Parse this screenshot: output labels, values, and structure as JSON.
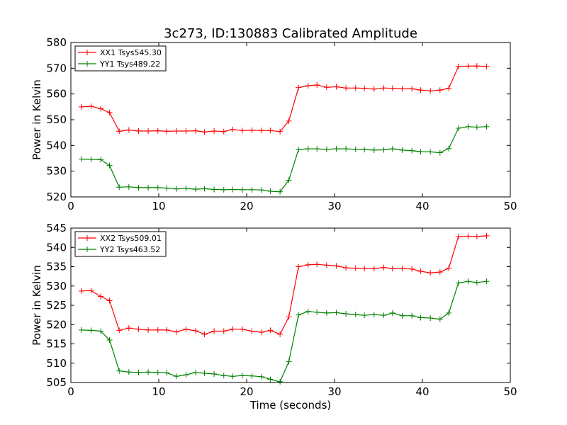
{
  "figure": {
    "title": "3c273, ID:130883 Calibrated Amplitude"
  },
  "chart_data": [
    {
      "type": "line",
      "title": "3c273, ID:130883 Calibrated Amplitude",
      "xlabel": "",
      "ylabel": "Power in Kelvin",
      "xlim": [
        0,
        50
      ],
      "ylim": [
        520,
        580
      ],
      "xticks": [
        0,
        10,
        20,
        30,
        40,
        50
      ],
      "yticks": [
        520,
        530,
        540,
        550,
        560,
        570,
        580
      ],
      "grid": false,
      "legend_position": "top-left",
      "x": [
        1.2,
        2.3,
        3.4,
        4.4,
        5.5,
        6.6,
        7.7,
        8.8,
        9.9,
        10.9,
        12.0,
        13.1,
        14.2,
        15.2,
        16.3,
        17.4,
        18.4,
        19.5,
        20.6,
        21.7,
        22.7,
        23.8,
        24.8,
        25.9,
        27.0,
        28.0,
        29.1,
        30.2,
        31.3,
        32.4,
        33.4,
        34.5,
        35.6,
        36.6,
        37.7,
        38.8,
        39.8,
        40.9,
        42.0,
        43.0,
        44.1,
        45.2,
        46.2,
        47.3
      ],
      "series": [
        {
          "name": "XX1 Tsys545.30",
          "color": "#ff0000",
          "values": [
            555.0,
            555.2,
            554.3,
            552.8,
            545.5,
            546.0,
            545.6,
            545.6,
            545.7,
            545.5,
            545.6,
            545.6,
            545.7,
            545.2,
            545.6,
            545.4,
            546.2,
            545.8,
            545.9,
            545.8,
            545.8,
            545.4,
            549.5,
            562.5,
            563.2,
            563.5,
            562.6,
            562.8,
            562.3,
            562.3,
            562.2,
            561.9,
            562.3,
            562.2,
            562.0,
            562.0,
            561.5,
            561.2,
            561.5,
            562.2,
            570.7,
            570.8,
            570.9,
            570.7
          ]
        },
        {
          "name": "YY1 Tsys489.22",
          "color": "#008000",
          "values": [
            534.7,
            534.6,
            534.5,
            532.2,
            523.8,
            523.9,
            523.6,
            523.6,
            523.6,
            523.4,
            523.1,
            523.3,
            523.0,
            523.2,
            522.9,
            522.8,
            522.9,
            522.8,
            522.8,
            522.7,
            522.2,
            522.0,
            526.5,
            538.4,
            538.7,
            538.7,
            538.5,
            538.7,
            538.7,
            538.5,
            538.4,
            538.2,
            538.3,
            538.7,
            538.2,
            538.0,
            537.5,
            537.5,
            537.2,
            538.8,
            546.7,
            547.3,
            547.1,
            547.3
          ]
        }
      ]
    },
    {
      "type": "line",
      "title": "",
      "xlabel": "Time (seconds)",
      "ylabel": "Power in Kelvin",
      "xlim": [
        0,
        50
      ],
      "ylim": [
        505,
        545
      ],
      "xticks": [
        0,
        10,
        20,
        30,
        40,
        50
      ],
      "yticks": [
        505,
        510,
        515,
        520,
        525,
        530,
        535,
        540,
        545
      ],
      "grid": false,
      "legend_position": "top-left",
      "x": [
        1.2,
        2.3,
        3.4,
        4.4,
        5.5,
        6.6,
        7.7,
        8.8,
        9.9,
        10.9,
        12.0,
        13.1,
        14.2,
        15.2,
        16.3,
        17.4,
        18.4,
        19.5,
        20.6,
        21.7,
        22.7,
        23.8,
        24.8,
        25.9,
        27.0,
        28.0,
        29.1,
        30.2,
        31.3,
        32.4,
        33.4,
        34.5,
        35.6,
        36.6,
        37.7,
        38.8,
        39.8,
        40.9,
        42.0,
        43.0,
        44.1,
        45.2,
        46.2,
        47.3
      ],
      "series": [
        {
          "name": "XX2 Tsys509.01",
          "color": "#ff0000",
          "values": [
            528.7,
            528.8,
            527.3,
            526.2,
            518.5,
            519.1,
            518.8,
            518.6,
            518.6,
            518.6,
            518.1,
            518.8,
            518.4,
            517.5,
            518.3,
            518.3,
            518.8,
            518.8,
            518.3,
            518.0,
            518.5,
            517.5,
            522.0,
            535.0,
            535.5,
            535.6,
            535.4,
            535.2,
            534.7,
            534.6,
            534.5,
            534.5,
            534.8,
            534.5,
            534.5,
            534.4,
            533.8,
            533.4,
            533.6,
            534.6,
            542.8,
            542.9,
            542.8,
            543.0
          ]
        },
        {
          "name": "YY2 Tsys463.52",
          "color": "#008000",
          "values": [
            518.6,
            518.5,
            518.3,
            516.0,
            508.0,
            507.7,
            507.6,
            507.7,
            507.6,
            507.5,
            506.6,
            507.0,
            507.6,
            507.4,
            507.2,
            506.8,
            506.6,
            506.8,
            506.7,
            506.5,
            505.8,
            505.2,
            510.4,
            522.5,
            523.4,
            523.2,
            523.0,
            523.1,
            522.8,
            522.6,
            522.4,
            522.6,
            522.4,
            523.0,
            522.3,
            522.3,
            521.8,
            521.7,
            521.4,
            523.0,
            530.8,
            531.2,
            530.9,
            531.2
          ]
        }
      ]
    }
  ]
}
